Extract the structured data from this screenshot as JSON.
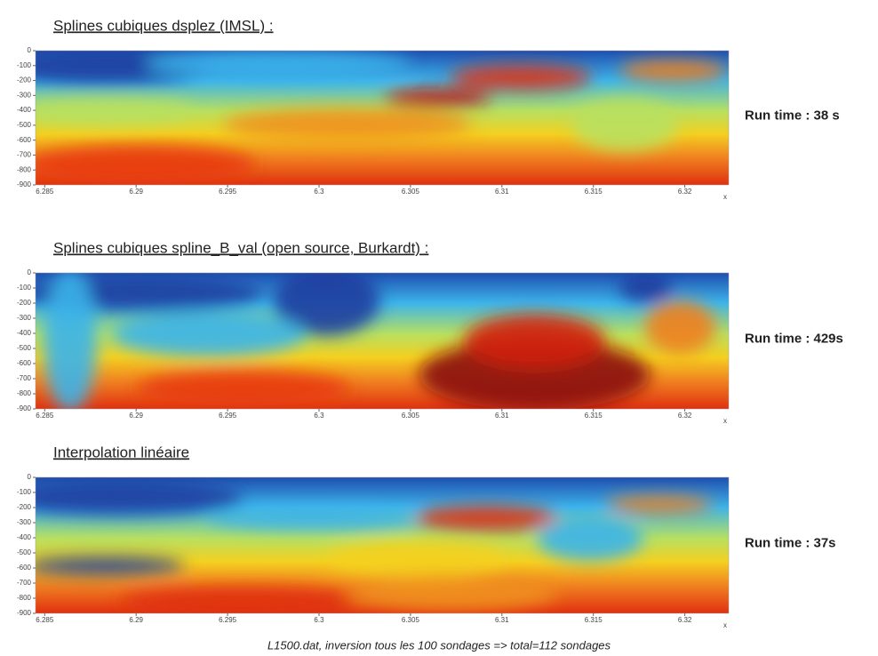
{
  "chart_data": [
    {
      "type": "heatmap",
      "title": "Splines cubiques dsplez (IMSL) :",
      "annotation": "Run time : 38 s",
      "xlabel": "x",
      "xlim": [
        6.2845,
        6.3224
      ],
      "xticks": [
        6.285,
        6.29,
        6.295,
        6.3,
        6.305,
        6.31,
        6.315,
        6.32
      ],
      "ylim": [
        -900,
        0
      ],
      "yticks": [
        0,
        -100,
        -200,
        -300,
        -400,
        -500,
        -600,
        -700,
        -800,
        -900
      ]
    },
    {
      "type": "heatmap",
      "title": "Splines cubiques spline_B_val  (open source, Burkardt) :",
      "annotation": "Run time : 429s",
      "xlabel": "x",
      "xlim": [
        6.2845,
        6.3224
      ],
      "xticks": [
        6.285,
        6.29,
        6.295,
        6.3,
        6.305,
        6.31,
        6.315,
        6.32
      ],
      "ylim": [
        -900,
        0
      ],
      "yticks": [
        0,
        -100,
        -200,
        -300,
        -400,
        -500,
        -600,
        -700,
        -800,
        -900
      ]
    },
    {
      "type": "heatmap",
      "title": "Interpolation linéaire",
      "annotation": "Run time : 37s",
      "xlabel": "x",
      "xlim": [
        6.2845,
        6.3224
      ],
      "xticks": [
        6.285,
        6.29,
        6.295,
        6.3,
        6.305,
        6.31,
        6.315,
        6.32
      ],
      "ylim": [
        -900,
        0
      ],
      "yticks": [
        0,
        -100,
        -200,
        -300,
        -400,
        -500,
        -600,
        -700,
        -800,
        -900
      ]
    }
  ],
  "caption": "L1500.dat, inversion tous les 100 sondages => total=112 sondages"
}
